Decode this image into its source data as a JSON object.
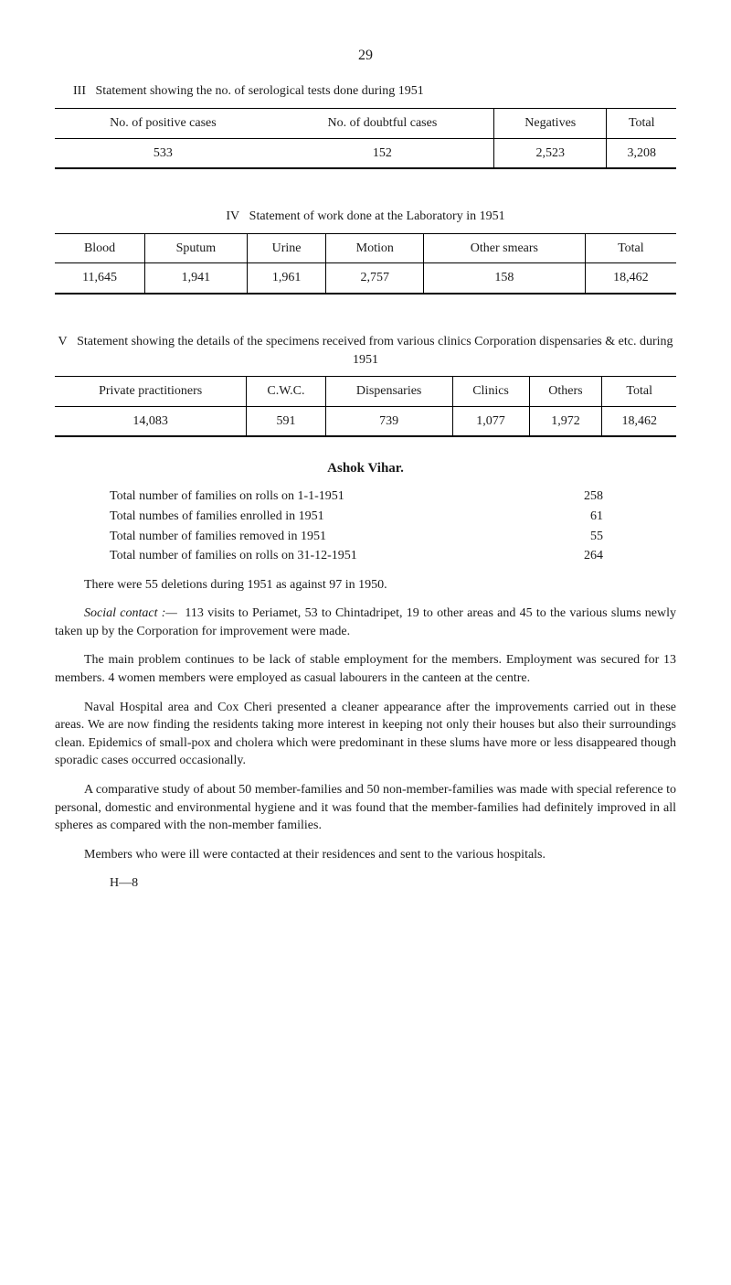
{
  "page_number": "29",
  "table3": {
    "caption_prefix": "III",
    "caption": "Statement showing the no. of serological tests done during 1951",
    "headers": [
      "No. of positive cases",
      "No. of doubtful cases",
      "Negatives",
      "Total"
    ],
    "row": [
      "533",
      "152",
      "2,523",
      "3,208"
    ]
  },
  "table4": {
    "caption_prefix": "IV",
    "caption": "Statement of work done at the Laboratory in 1951",
    "headers": [
      "Blood",
      "Sputum",
      "Urine",
      "Motion",
      "Other smears",
      "Total"
    ],
    "row": [
      "11,645",
      "1,941",
      "1,961",
      "2,757",
      "158",
      "18,462"
    ]
  },
  "table5": {
    "caption_prefix": "V",
    "caption": "Statement showing the details of the specimens received from various clinics Corporation dispensaries & etc. during 1951",
    "headers": [
      "Private practitioners",
      "C.W.C.",
      "Dispensaries",
      "Clinics",
      "Others",
      "Total"
    ],
    "row": [
      "14,083",
      "591",
      "739",
      "1,077",
      "1,972",
      "18,462"
    ]
  },
  "ashok": {
    "heading": "Ashok Vihar.",
    "rows": [
      {
        "label": "Total number of families on rolls on 1-1-1951",
        "value": "258"
      },
      {
        "label": "Total numbes of families enrolled in 1951",
        "value": "61"
      },
      {
        "label": "Total number of families removed in 1951",
        "value": "55"
      },
      {
        "label": "Total number of families on rolls on 31-12-1951",
        "value": "264"
      }
    ],
    "para1": "There were 55 deletions during 1951 as against 97 in 1950.",
    "para2_label": "Social contact :—",
    "para2": "113 visits to Periamet, 53 to Chintadripet, 19 to other areas and 45 to the various slums newly taken up by the Corporation for improvement were made.",
    "para3": "The main problem continues to be lack of stable employment for the members. Employment was secured for 13 members. 4 women members were employed as casual labourers in the canteen at the centre.",
    "para4": "Naval Hospital area and Cox Cheri presented a cleaner appearance after the improvements carried out in these areas. We are now finding the residents taking more interest in keeping not only their houses but also their surroundings clean. Epidemics of small-pox and cholera which were predo­minant in these slums have more or less disappeared though sporadic cases occurred occasionally.",
    "para5": "A comparative study of about 50 member-families and 50 non-member-families was made with special reference to personal, domestic and environ­mental hygiene and it was found that the member-families had definitely improved in all spheres as compared with the non-member families.",
    "para6": "Members who were ill were contacted at their residences and sent to the various hospitals.",
    "sig": "H—8"
  }
}
